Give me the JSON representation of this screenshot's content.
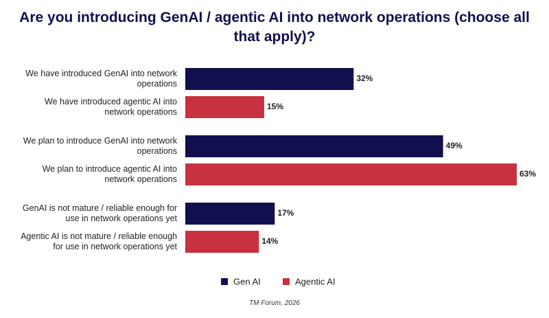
{
  "chart_data": {
    "type": "hbar",
    "title": "Are you introducing GenAI / agentic AI into network operations (choose all that apply)?",
    "categories": [
      "We have introduced GenAI into network operations",
      "We have introduced agentic AI into network operations",
      "We plan to introduce GenAI into network operations",
      "We plan to introduce agentic AI into network operations",
      "GenAI is not mature / reliable enough for use in network operations yet",
      "Agentic AI is not mature / reliable enough for use in network operations yet"
    ],
    "series": [
      {
        "name": "Gen AI",
        "color": "#120f4f",
        "values": [
          32,
          null,
          49,
          null,
          17,
          null
        ],
        "value_labels": [
          "32%",
          null,
          "49%",
          null,
          "17%",
          null
        ]
      },
      {
        "name": "Agentic AI",
        "color": "#c8313f",
        "values": [
          null,
          15,
          null,
          63,
          null,
          14
        ],
        "value_labels": [
          null,
          "15%",
          null,
          "63%",
          null,
          "14%"
        ]
      }
    ],
    "source": "TM Forum, 2026"
  }
}
